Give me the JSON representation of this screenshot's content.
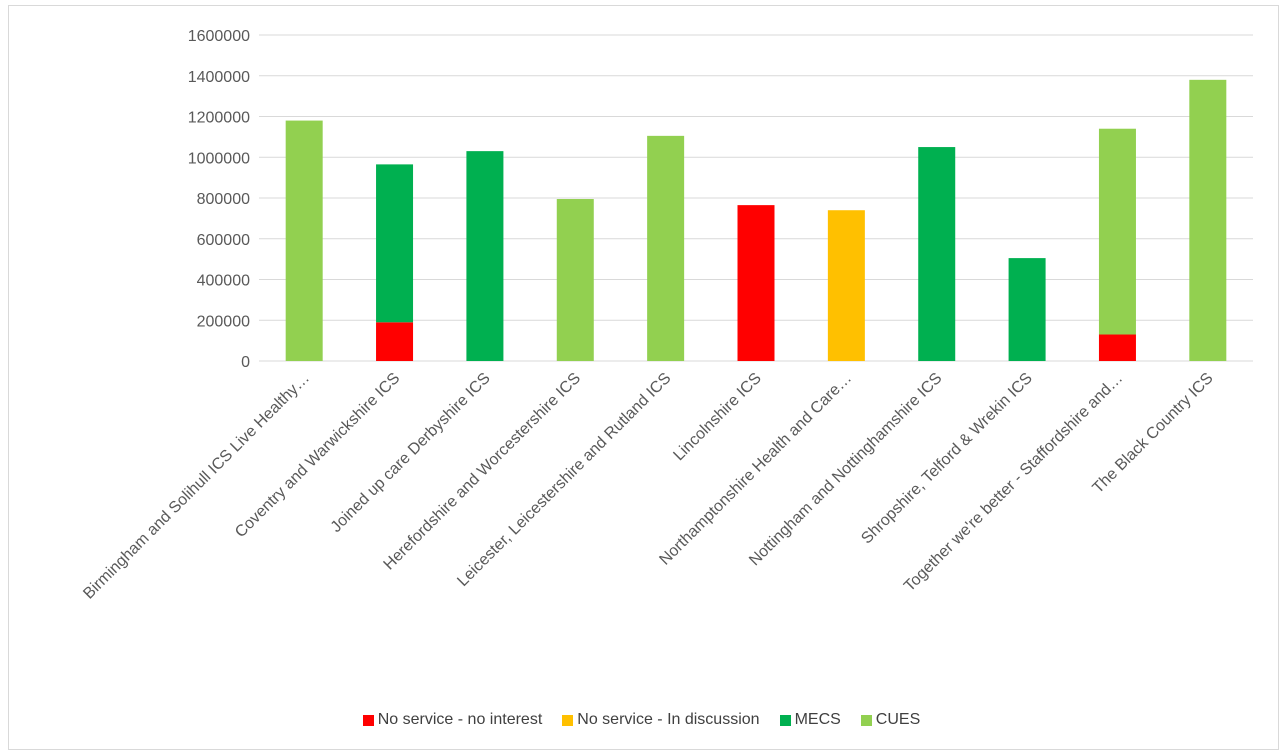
{
  "chart_data": {
    "type": "bar",
    "stacked": true,
    "title": "",
    "xlabel": "",
    "ylabel": "",
    "ylim": [
      0,
      1600000
    ],
    "yticks": [
      0,
      200000,
      400000,
      600000,
      800000,
      1000000,
      1200000,
      1400000,
      1600000
    ],
    "grid": true,
    "legend_position": "bottom",
    "categories": [
      "Birmingham and Solihull ICS Live Healthy…",
      "Coventry and Warwickshire ICS",
      "Joined up care Derbyshire ICS",
      "Herefordshire and Worcestershire ICS",
      "Leicester, Leicestershire and Rutland ICS",
      "Lincolnshire ICS",
      "Northamptonshire Health and Care…",
      "Nottingham and Nottinghamshire ICS",
      "Shropshire, Telford & Wrekin ICS",
      "Together we're better - Staffordshire and…",
      "The Black Country ICS"
    ],
    "series": [
      {
        "name": "No service - no interest",
        "color": "#ff0000",
        "values": [
          0,
          190000,
          0,
          0,
          0,
          765000,
          0,
          0,
          0,
          130000,
          0
        ]
      },
      {
        "name": "No service - In discussion",
        "color": "#ffc000",
        "values": [
          0,
          0,
          0,
          0,
          0,
          0,
          740000,
          0,
          0,
          0,
          0
        ]
      },
      {
        "name": "MECS",
        "color": "#00b050",
        "values": [
          0,
          775000,
          1030000,
          0,
          0,
          0,
          0,
          1050000,
          505000,
          0,
          0
        ]
      },
      {
        "name": "CUES",
        "color": "#92d050",
        "values": [
          1180000,
          0,
          0,
          795000,
          1105000,
          0,
          0,
          0,
          0,
          1010000,
          1380000
        ]
      }
    ]
  }
}
